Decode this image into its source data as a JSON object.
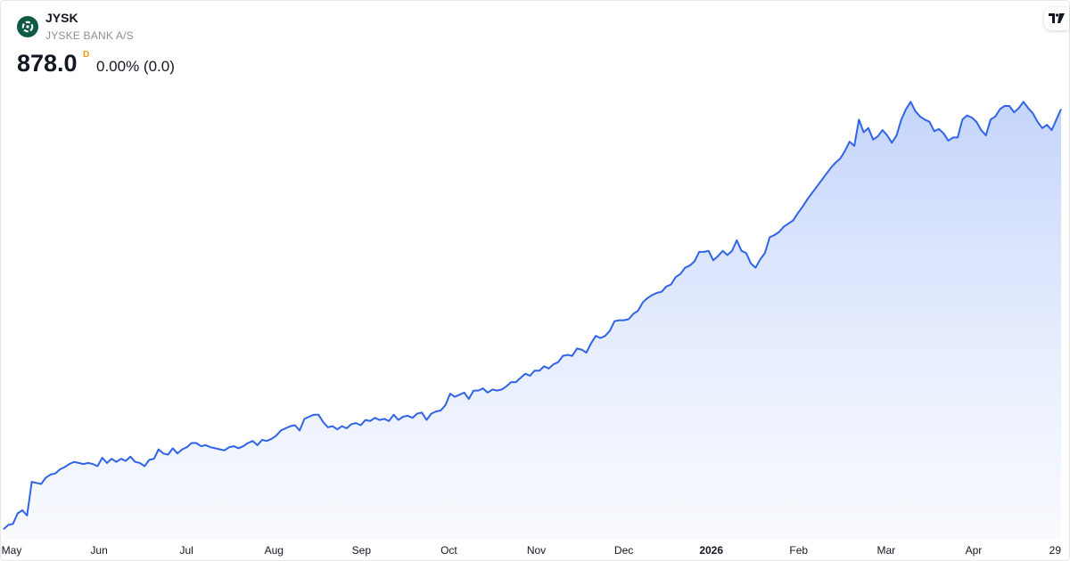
{
  "header": {
    "ticker": "JYSK",
    "company": "JYSKE BANK A/S",
    "price": "878.0",
    "interval_badge": "D",
    "change": "0.00% (0.0)"
  },
  "colors": {
    "line": "#2f64e6",
    "fill_top": "#c4d4fb",
    "fill_bottom": "#f4f7fe",
    "logo_bg": "#0f5a45",
    "badge": "#f39c12"
  },
  "icons": {
    "logo": "jyske-bank-logo-icon",
    "tradingview": "tradingview-logo-icon"
  },
  "chart_data": {
    "type": "area",
    "x_ticks": [
      {
        "label": "May",
        "bold": false
      },
      {
        "label": "Jun",
        "bold": false
      },
      {
        "label": "Jul",
        "bold": false
      },
      {
        "label": "Aug",
        "bold": false
      },
      {
        "label": "Sep",
        "bold": false
      },
      {
        "label": "Oct",
        "bold": false
      },
      {
        "label": "Nov",
        "bold": false
      },
      {
        "label": "Dec",
        "bold": false
      },
      {
        "label": "2026",
        "bold": true
      },
      {
        "label": "Feb",
        "bold": false
      },
      {
        "label": "Mar",
        "bold": false
      },
      {
        "label": "Apr",
        "bold": false
      },
      {
        "label": "29",
        "bold": false
      }
    ],
    "ylim": [
      470,
      950
    ],
    "grid": false,
    "series": [
      {
        "values": [
          480,
          484,
          485,
          495,
          498,
          493,
          525,
          524,
          523,
          529,
          532,
          533,
          537,
          539,
          542,
          544,
          543,
          542,
          543,
          542,
          540,
          548,
          543,
          547,
          544,
          547,
          545,
          549,
          544,
          543,
          540,
          546,
          547,
          556,
          552,
          551,
          557,
          552,
          556,
          558,
          562,
          562,
          559,
          560,
          558,
          557,
          556,
          555,
          558,
          559,
          557,
          559,
          562,
          564,
          560,
          565,
          564,
          566,
          569,
          574,
          576,
          578,
          579,
          574,
          585,
          587,
          589,
          589,
          582,
          577,
          578,
          575,
          578,
          576,
          580,
          581,
          579,
          584,
          583,
          586,
          584,
          585,
          583,
          589,
          584,
          587,
          588,
          586,
          590,
          591,
          584,
          590,
          592,
          593,
          598,
          609,
          606,
          608,
          610,
          604,
          612,
          612,
          614,
          610,
          613,
          612,
          613,
          616,
          620,
          620,
          624,
          628,
          626,
          631,
          631,
          635,
          633,
          637,
          639,
          645,
          646,
          645,
          652,
          651,
          648,
          657,
          664,
          662,
          664,
          669,
          678,
          679,
          679,
          680,
          685,
          688,
          696,
          700,
          703,
          705,
          706,
          711,
          713,
          720,
          723,
          729,
          731,
          735,
          744,
          744,
          745,
          736,
          740,
          745,
          741,
          745,
          755,
          745,
          743,
          733,
          729,
          737,
          743,
          758,
          760,
          763,
          768,
          771,
          774,
          781,
          787,
          794,
          800,
          806,
          812,
          818,
          824,
          829,
          833,
          840,
          849,
          845,
          870,
          858,
          862,
          851,
          854,
          860,
          855,
          848,
          855,
          870,
          880,
          887,
          878,
          873,
          870,
          868,
          859,
          861,
          857,
          850,
          853,
          853,
          870,
          874,
          872,
          868,
          860,
          855,
          870,
          873,
          880,
          883,
          883,
          877,
          881,
          887,
          881,
          876,
          868,
          862,
          865,
          860,
          870,
          880
        ]
      }
    ]
  }
}
